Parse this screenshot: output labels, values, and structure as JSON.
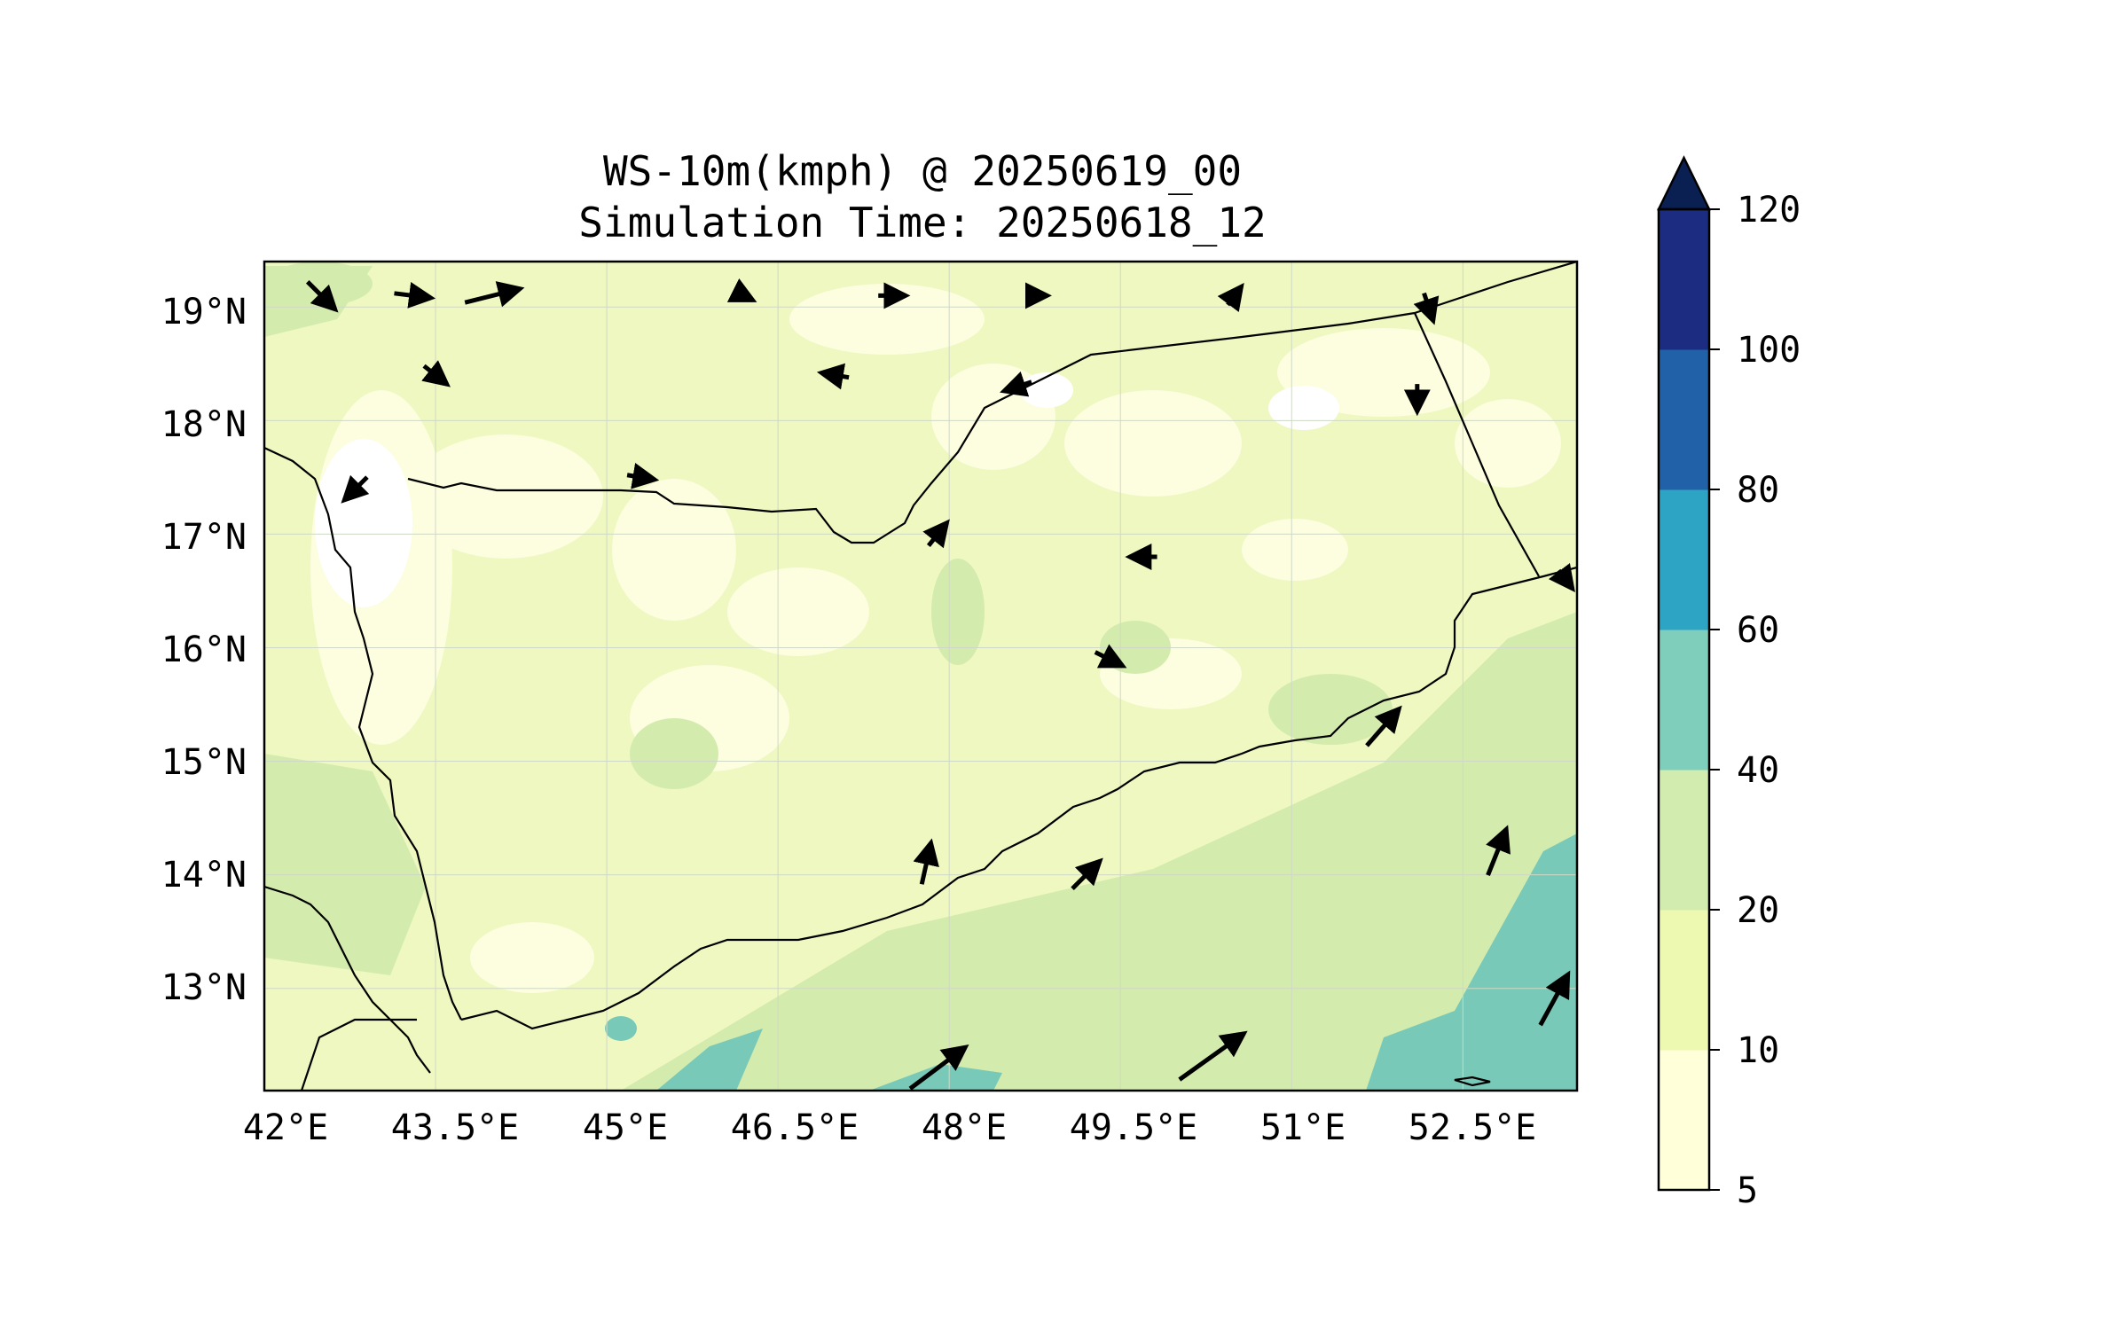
{
  "figure": {
    "title_line1": "WS-10m(kmph) @ 20250619_00",
    "title_line2": "Simulation Time: 20250618_12",
    "lon_labels": [
      "42°E",
      "43.5°E",
      "45°E",
      "46.5°E",
      "48°E",
      "49.5°E",
      "51°E",
      "52.5°E"
    ],
    "lat_labels": [
      "19°N",
      "18°N",
      "17°N",
      "16°N",
      "15°N",
      "14°N",
      "13°N"
    ]
  },
  "colorbar": {
    "ticks": [
      "5",
      "10",
      "20",
      "40",
      "60",
      "80",
      "100",
      "120"
    ],
    "colors": [
      "#ffffd9",
      "#edf8b1",
      "#d2ecb0",
      "#7fcdbb",
      "#2ea4c4",
      "#2161a8",
      "#1c2c80",
      "#0a1f52"
    ],
    "extend": "max"
  },
  "colors": {
    "land_base": "#eef8c0",
    "light_patch": "#fdfde0",
    "mid_patch": "#d3ecae",
    "high_patch": "#79c9b8",
    "arrow": "#000000",
    "coastline": "#000000"
  },
  "map_extent": {
    "lon_min": 42.0,
    "lon_max": 53.5,
    "lat_min": 12.1,
    "lat_max": 19.4
  },
  "chart_data": {
    "type": "heatmap",
    "title": "WS-10m(kmph) @ 20250619_00",
    "subtitle": "Simulation Time: 20250618_12",
    "x_ticks": [
      42,
      43.5,
      45,
      46.5,
      48,
      49.5,
      51,
      52.5
    ],
    "y_ticks": [
      13,
      14,
      15,
      16,
      17,
      18,
      19
    ],
    "xlim": [
      42.0,
      53.5
    ],
    "ylim": [
      12.1,
      19.4
    ],
    "color_levels": [
      5,
      10,
      20,
      40,
      60,
      80,
      100,
      120
    ],
    "wind_vectors_kmph": [
      {
        "lon": 42.5,
        "lat": 19.1,
        "u": 6,
        "v": -6
      },
      {
        "lon": 43.3,
        "lat": 19.1,
        "u": 8,
        "v": -1
      },
      {
        "lon": 44.0,
        "lat": 19.1,
        "u": 12,
        "v": 3
      },
      {
        "lon": 46.2,
        "lat": 19.1,
        "u": 4,
        "v": -2
      },
      {
        "lon": 47.5,
        "lat": 19.1,
        "u": 6,
        "v": 0
      },
      {
        "lon": 48.8,
        "lat": 19.1,
        "u": 3,
        "v": 0
      },
      {
        "lon": 50.5,
        "lat": 19.1,
        "u": 3,
        "v": 4
      },
      {
        "lon": 52.2,
        "lat": 19.0,
        "u": 2,
        "v": -6
      },
      {
        "lon": 43.5,
        "lat": 18.4,
        "u": 5,
        "v": -4
      },
      {
        "lon": 47.0,
        "lat": 18.4,
        "u": -6,
        "v": 1
      },
      {
        "lon": 48.6,
        "lat": 18.3,
        "u": -6,
        "v": -2
      },
      {
        "lon": 52.1,
        "lat": 18.2,
        "u": 0,
        "v": -6
      },
      {
        "lon": 42.8,
        "lat": 17.4,
        "u": -5,
        "v": -5
      },
      {
        "lon": 45.3,
        "lat": 17.5,
        "u": 6,
        "v": -1
      },
      {
        "lon": 47.9,
        "lat": 17.0,
        "u": 4,
        "v": 5
      },
      {
        "lon": 49.7,
        "lat": 16.8,
        "u": -6,
        "v": 0
      },
      {
        "lon": 53.4,
        "lat": 16.6,
        "u": 3,
        "v": -4
      },
      {
        "lon": 49.4,
        "lat": 15.9,
        "u": 6,
        "v": -3
      },
      {
        "lon": 51.8,
        "lat": 15.3,
        "u": 7,
        "v": 8
      },
      {
        "lon": 52.8,
        "lat": 14.2,
        "u": 4,
        "v": 10
      },
      {
        "lon": 49.2,
        "lat": 14.0,
        "u": 6,
        "v": 6
      },
      {
        "lon": 47.8,
        "lat": 14.1,
        "u": 2,
        "v": 9
      },
      {
        "lon": 47.9,
        "lat": 12.3,
        "u": 12,
        "v": 9
      },
      {
        "lon": 50.3,
        "lat": 12.4,
        "u": 14,
        "v": 10
      },
      {
        "lon": 53.3,
        "lat": 12.9,
        "u": 6,
        "v": 11
      }
    ]
  }
}
